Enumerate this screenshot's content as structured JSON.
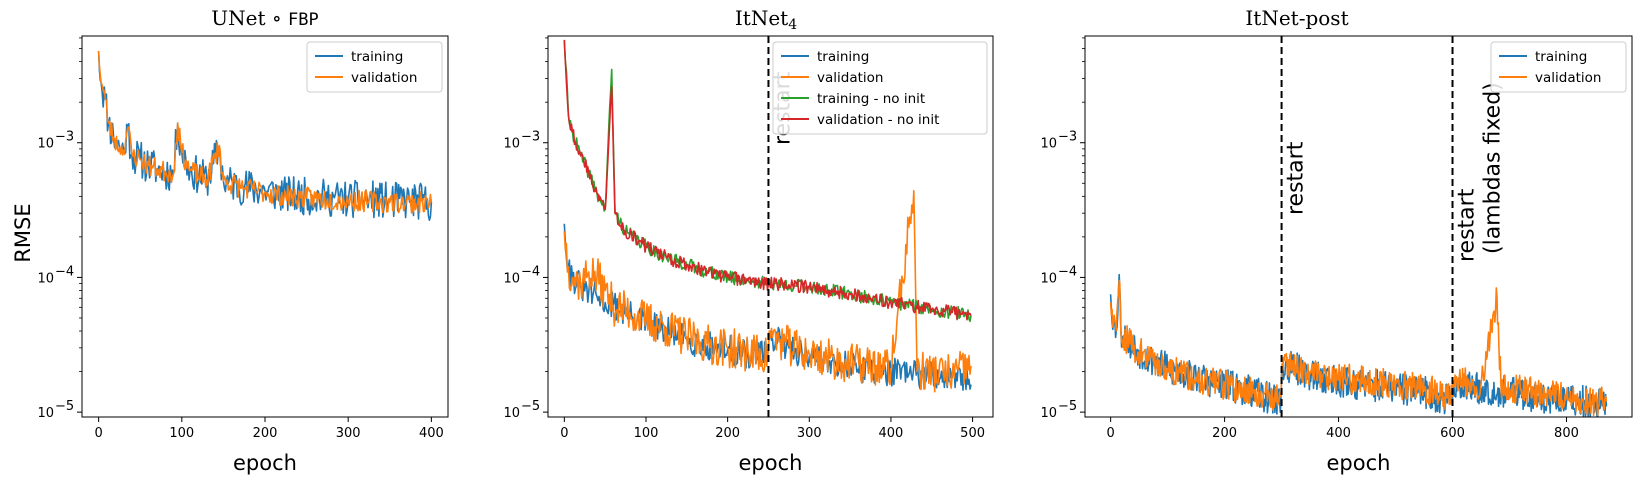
{
  "chart_data": [
    {
      "type": "line",
      "title": "UNet ∘ ",
      "title_mono": "FBP",
      "xlabel": "epoch",
      "ylabel": "RMSE",
      "yscale": "log",
      "xlim": [
        -20,
        420
      ],
      "ylim": [
        9.2e-06,
        0.0062
      ],
      "xticks": [
        0,
        100,
        200,
        300,
        400
      ],
      "yticks": [
        {
          "value": 1e-05,
          "label": "10",
          "exp": "−5"
        },
        {
          "value": 0.0001,
          "label": "10",
          "exp": "−4"
        },
        {
          "value": 0.001,
          "label": "10",
          "exp": "−3"
        }
      ],
      "legend_position": "top-right",
      "vlines": [],
      "series": [
        {
          "name": "training",
          "color": "#1f77b4",
          "points": [
            [
              0,
              0.0048
            ],
            [
              3,
              0.0028
            ],
            [
              8,
              0.0021
            ],
            [
              12,
              0.0014
            ],
            [
              18,
              0.0011
            ],
            [
              25,
              0.00092
            ],
            [
              30,
              0.00088
            ],
            [
              35,
              0.0013
            ],
            [
              40,
              0.00082
            ],
            [
              50,
              0.00075
            ],
            [
              60,
              0.00068
            ],
            [
              70,
              0.00064
            ],
            [
              80,
              0.00061
            ],
            [
              90,
              0.00059
            ],
            [
              95,
              0.0014
            ],
            [
              100,
              0.00085
            ],
            [
              110,
              0.00062
            ],
            [
              130,
              0.00053
            ],
            [
              145,
              0.0009
            ],
            [
              150,
              0.00052
            ],
            [
              175,
              0.00047
            ],
            [
              200,
              0.00044
            ],
            [
              225,
              0.00041
            ],
            [
              250,
              0.0004
            ],
            [
              275,
              0.00039
            ],
            [
              300,
              0.00038
            ],
            [
              325,
              0.00038
            ],
            [
              350,
              0.00037
            ],
            [
              375,
              0.00037
            ],
            [
              400,
              0.00036
            ]
          ],
          "noise": 0.28,
          "seed": 11
        },
        {
          "name": "validation",
          "color": "#ff7f0e",
          "points": [
            [
              0,
              0.0048
            ],
            [
              3,
              0.0028
            ],
            [
              8,
              0.0021
            ],
            [
              12,
              0.0014
            ],
            [
              18,
              0.0011
            ],
            [
              25,
              0.00092
            ],
            [
              30,
              0.00088
            ],
            [
              35,
              0.0013
            ],
            [
              40,
              0.00082
            ],
            [
              50,
              0.00075
            ],
            [
              60,
              0.00068
            ],
            [
              70,
              0.00064
            ],
            [
              80,
              0.00061
            ],
            [
              90,
              0.00059
            ],
            [
              95,
              0.0014
            ],
            [
              100,
              0.00085
            ],
            [
              110,
              0.00062
            ],
            [
              130,
              0.00053
            ],
            [
              145,
              0.00095
            ],
            [
              150,
              0.00052
            ],
            [
              175,
              0.00046
            ],
            [
              200,
              0.00043
            ],
            [
              225,
              0.0004
            ],
            [
              250,
              0.00039
            ],
            [
              275,
              0.00038
            ],
            [
              300,
              0.00037
            ],
            [
              325,
              0.00037
            ],
            [
              350,
              0.00036
            ],
            [
              375,
              0.00036
            ],
            [
              400,
              0.00036
            ]
          ],
          "noise": 0.16,
          "seed": 23
        }
      ]
    },
    {
      "type": "line",
      "title": "ItNet",
      "title_sub": "4",
      "xlabel": "epoch",
      "ylabel": "",
      "yscale": "log",
      "xlim": [
        -20,
        525
      ],
      "ylim": [
        9.2e-06,
        0.0062
      ],
      "xticks": [
        0,
        100,
        200,
        300,
        400,
        500
      ],
      "yticks": [
        {
          "value": 1e-05,
          "label": "10",
          "exp": "−5"
        },
        {
          "value": 0.0001,
          "label": "10",
          "exp": "−4"
        },
        {
          "value": 0.001,
          "label": "10",
          "exp": "−3"
        }
      ],
      "legend_position": "top-right",
      "vlines": [
        {
          "x": 250,
          "label": "restart"
        }
      ],
      "series": [
        {
          "name": "training",
          "color": "#1f77b4",
          "points": [
            [
              0,
              0.00025
            ],
            [
              5,
              0.00012
            ],
            [
              10,
              0.0001
            ],
            [
              20,
              8.5e-05
            ],
            [
              30,
              7.8e-05
            ],
            [
              40,
              7.2e-05
            ],
            [
              50,
              6.5e-05
            ],
            [
              60,
              6.2e-05
            ],
            [
              80,
              5.2e-05
            ],
            [
              100,
              4.6e-05
            ],
            [
              125,
              4e-05
            ],
            [
              150,
              3.5e-05
            ],
            [
              175,
              3.1e-05
            ],
            [
              200,
              2.9e-05
            ],
            [
              225,
              2.7e-05
            ],
            [
              249,
              2.6e-05
            ],
            [
              251,
              4e-05
            ],
            [
              255,
              3.5e-05
            ],
            [
              275,
              3e-05
            ],
            [
              300,
              2.6e-05
            ],
            [
              325,
              2.4e-05
            ],
            [
              350,
              2.2e-05
            ],
            [
              375,
              2.1e-05
            ],
            [
              400,
              2e-05
            ],
            [
              425,
              1.9e-05
            ],
            [
              450,
              1.9e-05
            ],
            [
              475,
              1.8e-05
            ],
            [
              498,
              1.6e-05
            ]
          ],
          "noise": 0.22,
          "seed": 31
        },
        {
          "name": "validation",
          "color": "#ff7f0e",
          "points": [
            [
              0,
              0.00022
            ],
            [
              5,
              0.00012
            ],
            [
              10,
              0.0001
            ],
            [
              20,
              9e-05
            ],
            [
              30,
              0.00011
            ],
            [
              40,
              0.0001
            ],
            [
              50,
              8e-05
            ],
            [
              60,
              6.2e-05
            ],
            [
              80,
              5.5e-05
            ],
            [
              100,
              4.8e-05
            ],
            [
              125,
              4.2e-05
            ],
            [
              150,
              3.6e-05
            ],
            [
              175,
              3.2e-05
            ],
            [
              200,
              3e-05
            ],
            [
              225,
              2.8e-05
            ],
            [
              249,
              2.6e-05
            ],
            [
              251,
              4e-05
            ],
            [
              255,
              3.6e-05
            ],
            [
              275,
              3.1e-05
            ],
            [
              300,
              2.7e-05
            ],
            [
              325,
              2.5e-05
            ],
            [
              350,
              2.3e-05
            ],
            [
              375,
              2.2e-05
            ],
            [
              400,
              2.1e-05
            ],
            [
              428,
              0.00044
            ],
            [
              432,
              2e-05
            ],
            [
              450,
              2e-05
            ],
            [
              475,
              1.9e-05
            ],
            [
              498,
              2.2e-05
            ]
          ],
          "noise": 0.3,
          "seed": 37
        },
        {
          "name": "training - no init",
          "color": "#2ca02c",
          "points": [
            [
              0,
              0.0058
            ],
            [
              5,
              0.0016
            ],
            [
              10,
              0.0012
            ],
            [
              20,
              0.0008
            ],
            [
              30,
              0.0006
            ],
            [
              40,
              0.00042
            ],
            [
              50,
              0.00032
            ],
            [
              58,
              0.0035
            ],
            [
              62,
              0.0003
            ],
            [
              75,
              0.00022
            ],
            [
              100,
              0.00017
            ],
            [
              125,
              0.00014
            ],
            [
              150,
              0.000125
            ],
            [
              175,
              0.00011
            ],
            [
              200,
              0.0001
            ],
            [
              225,
              9.5e-05
            ],
            [
              250,
              9e-05
            ],
            [
              275,
              8.8e-05
            ],
            [
              300,
              8.5e-05
            ],
            [
              325,
              8e-05
            ],
            [
              350,
              7.5e-05
            ],
            [
              375,
              7e-05
            ],
            [
              400,
              6.5e-05
            ],
            [
              425,
              6.2e-05
            ],
            [
              450,
              5.8e-05
            ],
            [
              475,
              5.5e-05
            ],
            [
              498,
              5.2e-05
            ]
          ],
          "noise": 0.1,
          "seed": 41
        },
        {
          "name": "validation - no init",
          "color": "#d62728",
          "points": [
            [
              0,
              0.0058
            ],
            [
              5,
              0.0016
            ],
            [
              10,
              0.0012
            ],
            [
              20,
              0.0008
            ],
            [
              30,
              0.0006
            ],
            [
              40,
              0.00042
            ],
            [
              50,
              0.00032
            ],
            [
              58,
              0.0026
            ],
            [
              62,
              0.0003
            ],
            [
              75,
              0.00022
            ],
            [
              100,
              0.00017
            ],
            [
              125,
              0.00014
            ],
            [
              150,
              0.000125
            ],
            [
              175,
              0.00011
            ],
            [
              200,
              0.0001
            ],
            [
              225,
              9.5e-05
            ],
            [
              250,
              9e-05
            ],
            [
              275,
              8.8e-05
            ],
            [
              300,
              8.5e-05
            ],
            [
              325,
              8e-05
            ],
            [
              350,
              7.5e-05
            ],
            [
              375,
              7e-05
            ],
            [
              400,
              6.5e-05
            ],
            [
              425,
              6.2e-05
            ],
            [
              450,
              5.8e-05
            ],
            [
              475,
              5.5e-05
            ],
            [
              498,
              5.2e-05
            ]
          ],
          "noise": 0.1,
          "seed": 43
        }
      ]
    },
    {
      "type": "line",
      "title": "ItNet-post",
      "xlabel": "epoch",
      "ylabel": "",
      "yscale": "log",
      "xlim": [
        -45,
        915
      ],
      "ylim": [
        9.2e-06,
        0.0062
      ],
      "xticks": [
        0,
        200,
        400,
        600,
        800
      ],
      "yticks": [
        {
          "value": 1e-05,
          "label": "10",
          "exp": "−5"
        },
        {
          "value": 0.0001,
          "label": "10",
          "exp": "−4"
        },
        {
          "value": 0.001,
          "label": "10",
          "exp": "−3"
        }
      ],
      "legend_position": "top-right",
      "vlines": [
        {
          "x": 300,
          "label": "restart"
        },
        {
          "x": 600,
          "label": "restart",
          "label2": "(lambdas fixed)"
        }
      ],
      "series": [
        {
          "name": "training",
          "color": "#1f77b4",
          "points": [
            [
              0,
              7.5e-05
            ],
            [
              5,
              4.5e-05
            ],
            [
              10,
              4e-05
            ],
            [
              15,
              0.000105
            ],
            [
              18,
              4e-05
            ],
            [
              30,
              3.4e-05
            ],
            [
              50,
              2.8e-05
            ],
            [
              75,
              2.4e-05
            ],
            [
              100,
              2.1e-05
            ],
            [
              150,
              1.8e-05
            ],
            [
              200,
              1.6e-05
            ],
            [
              250,
              1.4e-05
            ],
            [
              299,
              1.2e-05
            ],
            [
              301,
              2.2e-05
            ],
            [
              325,
              2.1e-05
            ],
            [
              350,
              1.9e-05
            ],
            [
              400,
              1.7e-05
            ],
            [
              450,
              1.6e-05
            ],
            [
              500,
              1.5e-05
            ],
            [
              550,
              1.4e-05
            ],
            [
              599,
              1.2e-05
            ],
            [
              601,
              1.6e-05
            ],
            [
              650,
              1.5e-05
            ],
            [
              700,
              1.4e-05
            ],
            [
              750,
              1.3e-05
            ],
            [
              800,
              1.2e-05
            ],
            [
              850,
              1.2e-05
            ],
            [
              870,
              1.1e-05
            ]
          ],
          "noise": 0.24,
          "seed": 53
        },
        {
          "name": "validation",
          "color": "#ff7f0e",
          "points": [
            [
              0,
              6.5e-05
            ],
            [
              5,
              4.5e-05
            ],
            [
              10,
              4e-05
            ],
            [
              15,
              9.5e-05
            ],
            [
              18,
              4e-05
            ],
            [
              30,
              3.4e-05
            ],
            [
              50,
              2.8e-05
            ],
            [
              75,
              2.4e-05
            ],
            [
              100,
              2.1e-05
            ],
            [
              150,
              1.8e-05
            ],
            [
              200,
              1.6e-05
            ],
            [
              250,
              1.4e-05
            ],
            [
              299,
              1.3e-05
            ],
            [
              301,
              2.3e-05
            ],
            [
              325,
              2.2e-05
            ],
            [
              350,
              2e-05
            ],
            [
              400,
              1.8e-05
            ],
            [
              450,
              1.7e-05
            ],
            [
              500,
              1.6e-05
            ],
            [
              550,
              1.5e-05
            ],
            [
              599,
              1.3e-05
            ],
            [
              601,
              1.7e-05
            ],
            [
              650,
              1.6e-05
            ],
            [
              678,
              7.2e-05
            ],
            [
              685,
              1.6e-05
            ],
            [
              700,
              1.5e-05
            ],
            [
              750,
              1.4e-05
            ],
            [
              800,
              1.3e-05
            ],
            [
              850,
              1.2e-05
            ],
            [
              870,
              1.2e-05
            ]
          ],
          "noise": 0.22,
          "seed": 59
        }
      ]
    }
  ]
}
